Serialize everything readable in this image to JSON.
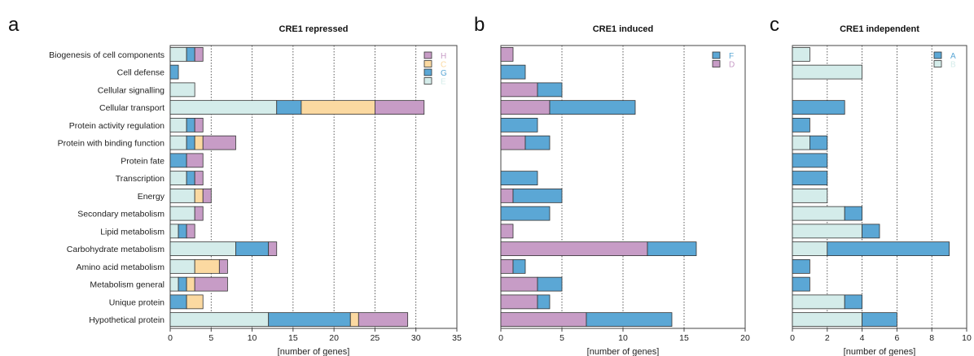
{
  "categories": [
    "Biogenesis of cell components",
    "Cell defense",
    "Cellular signalling",
    "Cellular transport",
    "Protein activity regulation",
    "Protein with binding function",
    "Protein fate",
    "Transcription",
    "Energy",
    "Secondary metabolism",
    "Lipid metabolism",
    "Carbohydrate metabolism",
    "Amino acid metabolism",
    "Metabolism general",
    "Unique protein",
    "Hypothetical protein"
  ],
  "chart_data": [
    {
      "type": "bar",
      "orientation": "horizontal",
      "stacked": true,
      "panel_letter": "a",
      "title": "CRE1 repressed",
      "xlabel": "[number of genes]",
      "xlim": [
        0,
        35
      ],
      "xticks": [
        0,
        5,
        10,
        15,
        20,
        25,
        30,
        35
      ],
      "grid": "vertical dotted",
      "legend_position": "top-right",
      "legend_order": [
        "H",
        "C",
        "G",
        "E"
      ],
      "series": [
        {
          "name": "E",
          "color": "#d4ecea",
          "values": [
            2,
            0,
            3,
            13,
            2,
            2,
            0,
            2,
            3,
            3,
            1,
            8,
            3,
            1,
            0,
            12
          ]
        },
        {
          "name": "G",
          "color": "#5ba7d5",
          "values": [
            1,
            1,
            0,
            3,
            1,
            1,
            2,
            1,
            0,
            0,
            1,
            4,
            0,
            1,
            2,
            10
          ]
        },
        {
          "name": "C",
          "color": "#fbd9a1",
          "values": [
            0,
            0,
            0,
            9,
            0,
            1,
            0,
            0,
            1,
            0,
            0,
            0,
            3,
            1,
            2,
            1
          ]
        },
        {
          "name": "H",
          "color": "#c79cc6",
          "values": [
            1,
            0,
            0,
            6,
            1,
            4,
            2,
            1,
            1,
            1,
            1,
            1,
            1,
            4,
            0,
            6
          ]
        }
      ]
    },
    {
      "type": "bar",
      "orientation": "horizontal",
      "stacked": true,
      "panel_letter": "b",
      "title": "CRE1 induced",
      "xlabel": "[number of genes]",
      "xlim": [
        0,
        20
      ],
      "xticks": [
        0,
        5,
        10,
        15,
        20
      ],
      "grid": "vertical dotted",
      "legend_position": "top-right",
      "legend_order": [
        "F",
        "D"
      ],
      "series": [
        {
          "name": "D",
          "color": "#c79cc6",
          "values": [
            1,
            0,
            3,
            4,
            0,
            2,
            0,
            0,
            1,
            0,
            1,
            12,
            1,
            3,
            3,
            7
          ]
        },
        {
          "name": "F",
          "color": "#5ba7d5",
          "values": [
            0,
            2,
            2,
            7,
            3,
            2,
            0,
            3,
            4,
            4,
            0,
            4,
            1,
            2,
            1,
            7
          ]
        }
      ]
    },
    {
      "type": "bar",
      "orientation": "horizontal",
      "stacked": true,
      "panel_letter": "c",
      "title": "CRE1 independent",
      "xlabel": "[number of genes]",
      "xlim": [
        0,
        10
      ],
      "xticks": [
        0,
        2,
        4,
        6,
        8,
        10
      ],
      "grid": "vertical dotted",
      "legend_position": "top-right",
      "legend_order": [
        "A",
        "B"
      ],
      "series": [
        {
          "name": "B",
          "color": "#d4ecea",
          "values": [
            1,
            4,
            0,
            0,
            0,
            1,
            0,
            0,
            2,
            3,
            4,
            2,
            0,
            0,
            3,
            4
          ]
        },
        {
          "name": "A",
          "color": "#5ba7d5",
          "values": [
            0,
            0,
            0,
            3,
            1,
            1,
            2,
            2,
            0,
            1,
            1,
            7,
            1,
            1,
            1,
            2
          ]
        }
      ]
    }
  ]
}
